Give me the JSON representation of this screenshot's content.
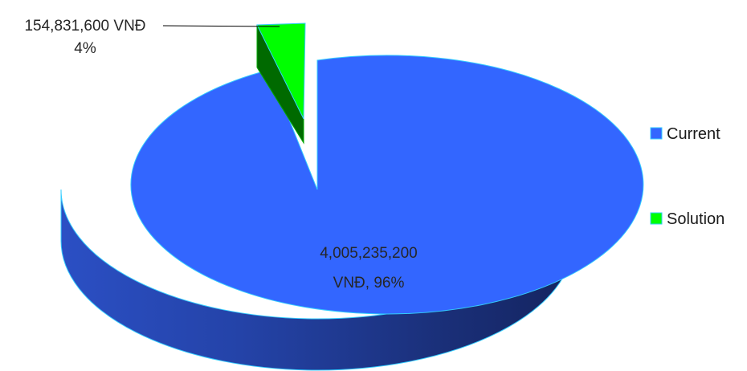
{
  "chart_data": {
    "type": "pie",
    "title": "",
    "style": "3d-exploded",
    "categories": [
      "Current",
      "Solution"
    ],
    "values": [
      4005235200,
      154831600
    ],
    "percentages": [
      96,
      4
    ],
    "unit": "VNĐ",
    "colors": [
      "#3366FF",
      "#00FF00"
    ],
    "legend_position": "right",
    "data_labels": {
      "current": {
        "line1": "4,005,235,200",
        "line2": "VNĐ, 96%"
      },
      "solution": {
        "line1": "154,831,600 VNĐ",
        "line2": "4%"
      }
    },
    "legend": [
      "Current",
      "Solution"
    ]
  }
}
